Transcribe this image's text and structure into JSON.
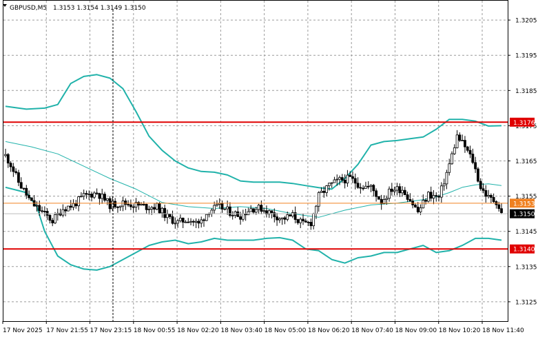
{
  "header": {
    "symbol": "GBPUSD,M5",
    "ohlc": "1.3153 1.3154 1.3149 1.3150"
  },
  "chart_data": {
    "type": "candlestick",
    "symbol": "GBPUSD",
    "timeframe": "M5",
    "ylim": [
      1.31195,
      1.32105
    ],
    "y_ticks": [
      1.3205,
      1.3195,
      1.3185,
      1.3175,
      1.3165,
      1.3155,
      1.3145,
      1.3135,
      1.3125
    ],
    "y_tick_labels": [
      "1.3205",
      "1.3195",
      "1.3185",
      "1.3175",
      "1.3165",
      "1.3155",
      "1.3145",
      "1.3135",
      "1.3125"
    ],
    "x_tick_labels": [
      "17 Nov 2025",
      "17 Nov 21:55",
      "17 Nov 23:15",
      "18 Nov 00:55",
      "18 Nov 02:20",
      "18 Nov 03:40",
      "18 Nov 05:00",
      "18 Nov 06:20",
      "18 Nov 07:40",
      "18 Nov 09:00",
      "18 Nov 10:20",
      "18 Nov 11:40"
    ],
    "grid": true,
    "horizontal_levels": [
      {
        "label": "1.3176",
        "value": 1.3176,
        "color": "#e00000"
      },
      {
        "label": "1.3140",
        "value": 1.314,
        "color": "#e00000"
      }
    ],
    "price_labels": [
      {
        "label": "1.3153",
        "value": 1.3153,
        "color": "#f08020"
      },
      {
        "label": "1.3150",
        "value": 1.315,
        "color": "#000000"
      }
    ],
    "upper_band": [
      [
        0,
        1.31805
      ],
      [
        8,
        1.31797
      ],
      [
        15,
        1.318
      ],
      [
        20,
        1.3181
      ],
      [
        25,
        1.3187
      ],
      [
        30,
        1.3189
      ],
      [
        35,
        1.31895
      ],
      [
        40,
        1.31885
      ],
      [
        45,
        1.31855
      ],
      [
        50,
        1.3179
      ],
      [
        55,
        1.3172
      ],
      [
        60,
        1.3168
      ],
      [
        65,
        1.3165
      ],
      [
        70,
        1.3163
      ],
      [
        75,
        1.3162
      ],
      [
        80,
        1.31618
      ],
      [
        85,
        1.3161
      ],
      [
        90,
        1.31593
      ],
      [
        95,
        1.3159
      ],
      [
        100,
        1.3159
      ],
      [
        105,
        1.3159
      ],
      [
        110,
        1.31586
      ],
      [
        115,
        1.3158
      ],
      [
        120,
        1.31574
      ],
      [
        125,
        1.3157
      ],
      [
        130,
        1.316
      ],
      [
        135,
        1.3164
      ],
      [
        140,
        1.31695
      ],
      [
        145,
        1.31705
      ],
      [
        150,
        1.31708
      ],
      [
        155,
        1.31713
      ],
      [
        160,
        1.31718
      ],
      [
        165,
        1.3174
      ],
      [
        170,
        1.31768
      ],
      [
        175,
        1.31768
      ],
      [
        180,
        1.31763
      ],
      [
        185,
        1.31749
      ],
      [
        190,
        1.3175
      ]
    ],
    "middle_line": [
      [
        0,
        1.31705
      ],
      [
        10,
        1.3169
      ],
      [
        20,
        1.3167
      ],
      [
        30,
        1.31635
      ],
      [
        40,
        1.316
      ],
      [
        50,
        1.3157
      ],
      [
        60,
        1.31532
      ],
      [
        70,
        1.3152
      ],
      [
        80,
        1.31515
      ],
      [
        90,
        1.3152
      ],
      [
        100,
        1.31515
      ],
      [
        110,
        1.315
      ],
      [
        115,
        1.31495
      ],
      [
        120,
        1.3149
      ],
      [
        130,
        1.3151
      ],
      [
        140,
        1.31525
      ],
      [
        150,
        1.3153
      ],
      [
        160,
        1.3154
      ],
      [
        165,
        1.31548
      ],
      [
        170,
        1.3156
      ],
      [
        175,
        1.31575
      ],
      [
        180,
        1.31582
      ],
      [
        185,
        1.31585
      ],
      [
        190,
        1.3158
      ]
    ],
    "lower_band": [
      [
        0,
        1.31575
      ],
      [
        8,
        1.3156
      ],
      [
        12,
        1.3152
      ],
      [
        15,
        1.3145
      ],
      [
        20,
        1.3138
      ],
      [
        25,
        1.31355
      ],
      [
        30,
        1.31343
      ],
      [
        35,
        1.3134
      ],
      [
        40,
        1.3135
      ],
      [
        45,
        1.3137
      ],
      [
        50,
        1.3139
      ],
      [
        55,
        1.3141
      ],
      [
        60,
        1.3142
      ],
      [
        65,
        1.31425
      ],
      [
        70,
        1.31415
      ],
      [
        75,
        1.3142
      ],
      [
        80,
        1.3143
      ],
      [
        85,
        1.31425
      ],
      [
        90,
        1.31425
      ],
      [
        95,
        1.31425
      ],
      [
        100,
        1.3143
      ],
      [
        105,
        1.31432
      ],
      [
        110,
        1.31425
      ],
      [
        115,
        1.314
      ],
      [
        120,
        1.31395
      ],
      [
        125,
        1.3137
      ],
      [
        130,
        1.3136
      ],
      [
        135,
        1.31375
      ],
      [
        140,
        1.3138
      ],
      [
        145,
        1.3139
      ],
      [
        150,
        1.3139
      ],
      [
        155,
        1.314
      ],
      [
        160,
        1.3141
      ],
      [
        165,
        1.3139
      ],
      [
        170,
        1.31395
      ],
      [
        175,
        1.3141
      ],
      [
        180,
        1.3143
      ],
      [
        185,
        1.3143
      ],
      [
        190,
        1.31425
      ]
    ],
    "close_path": [
      [
        0,
        1.31665
      ],
      [
        2,
        1.3164
      ],
      [
        5,
        1.3159
      ],
      [
        10,
        1.3153
      ],
      [
        14,
        1.31505
      ],
      [
        18,
        1.3148
      ],
      [
        22,
        1.31515
      ],
      [
        26,
        1.31525
      ],
      [
        30,
        1.3155
      ],
      [
        35,
        1.3156
      ],
      [
        38,
        1.3154
      ],
      [
        40,
        1.31525
      ],
      [
        45,
        1.3153
      ],
      [
        50,
        1.31525
      ],
      [
        54,
        1.3152
      ],
      [
        58,
        1.3152
      ],
      [
        62,
        1.3149
      ],
      [
        66,
        1.31475
      ],
      [
        70,
        1.31485
      ],
      [
        74,
        1.3147
      ],
      [
        78,
        1.3151
      ],
      [
        82,
        1.3152
      ],
      [
        86,
        1.31505
      ],
      [
        90,
        1.31495
      ],
      [
        94,
        1.31515
      ],
      [
        98,
        1.31515
      ],
      [
        102,
        1.315
      ],
      [
        106,
        1.31485
      ],
      [
        110,
        1.31495
      ],
      [
        114,
        1.3147
      ],
      [
        117,
        1.31475
      ],
      [
        120,
        1.3155
      ],
      [
        124,
        1.3158
      ],
      [
        128,
        1.31595
      ],
      [
        132,
        1.316
      ],
      [
        136,
        1.3158
      ],
      [
        140,
        1.31575
      ],
      [
        144,
        1.31535
      ],
      [
        148,
        1.3157
      ],
      [
        152,
        1.3157
      ],
      [
        155,
        1.3154
      ],
      [
        158,
        1.31505
      ],
      [
        162,
        1.31555
      ],
      [
        166,
        1.31545
      ],
      [
        170,
        1.3164
      ],
      [
        173,
        1.3172
      ],
      [
        176,
        1.3169
      ],
      [
        179,
        1.3165
      ],
      [
        182,
        1.31575
      ],
      [
        185,
        1.31545
      ],
      [
        188,
        1.31535
      ],
      [
        190,
        1.315
      ]
    ]
  }
}
